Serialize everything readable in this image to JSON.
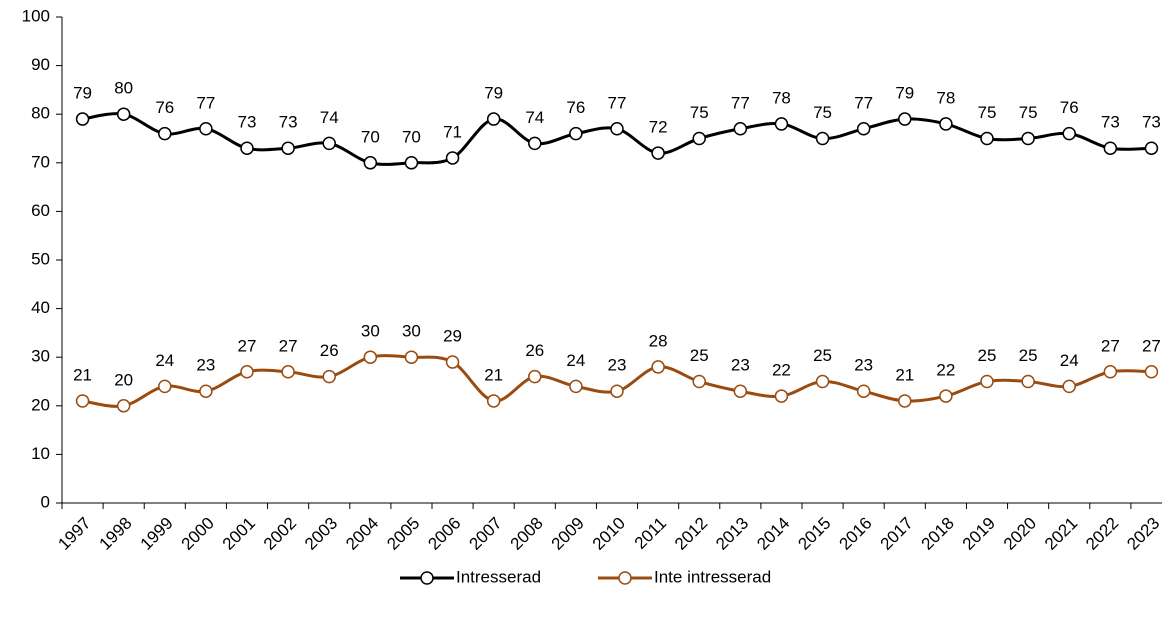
{
  "chart_data": {
    "type": "line",
    "categories": [
      "1997",
      "1998",
      "1999",
      "2000",
      "2001",
      "2002",
      "2003",
      "2004",
      "2005",
      "2006",
      "2007",
      "2008",
      "2009",
      "2010",
      "2011",
      "2012",
      "2013",
      "2014",
      "2015",
      "2016",
      "2017",
      "2018",
      "2019",
      "2020",
      "2021",
      "2022",
      "2023"
    ],
    "series": [
      {
        "name": "Intresserad",
        "color": "#000000",
        "values": [
          79,
          80,
          76,
          77,
          73,
          73,
          74,
          70,
          70,
          71,
          79,
          74,
          76,
          77,
          72,
          75,
          77,
          78,
          75,
          77,
          79,
          78,
          75,
          75,
          76,
          73,
          73
        ]
      },
      {
        "name": "Inte intresserad",
        "color": "#9a4c10",
        "values": [
          21,
          20,
          24,
          23,
          27,
          27,
          26,
          30,
          30,
          29,
          21,
          26,
          24,
          23,
          28,
          25,
          23,
          22,
          25,
          23,
          21,
          22,
          25,
          25,
          24,
          27,
          27
        ]
      }
    ],
    "ylim": [
      0,
      100
    ],
    "yticks": [
      0,
      10,
      20,
      30,
      40,
      50,
      60,
      70,
      80,
      90,
      100
    ],
    "smooth": true,
    "legend": "bottom"
  }
}
